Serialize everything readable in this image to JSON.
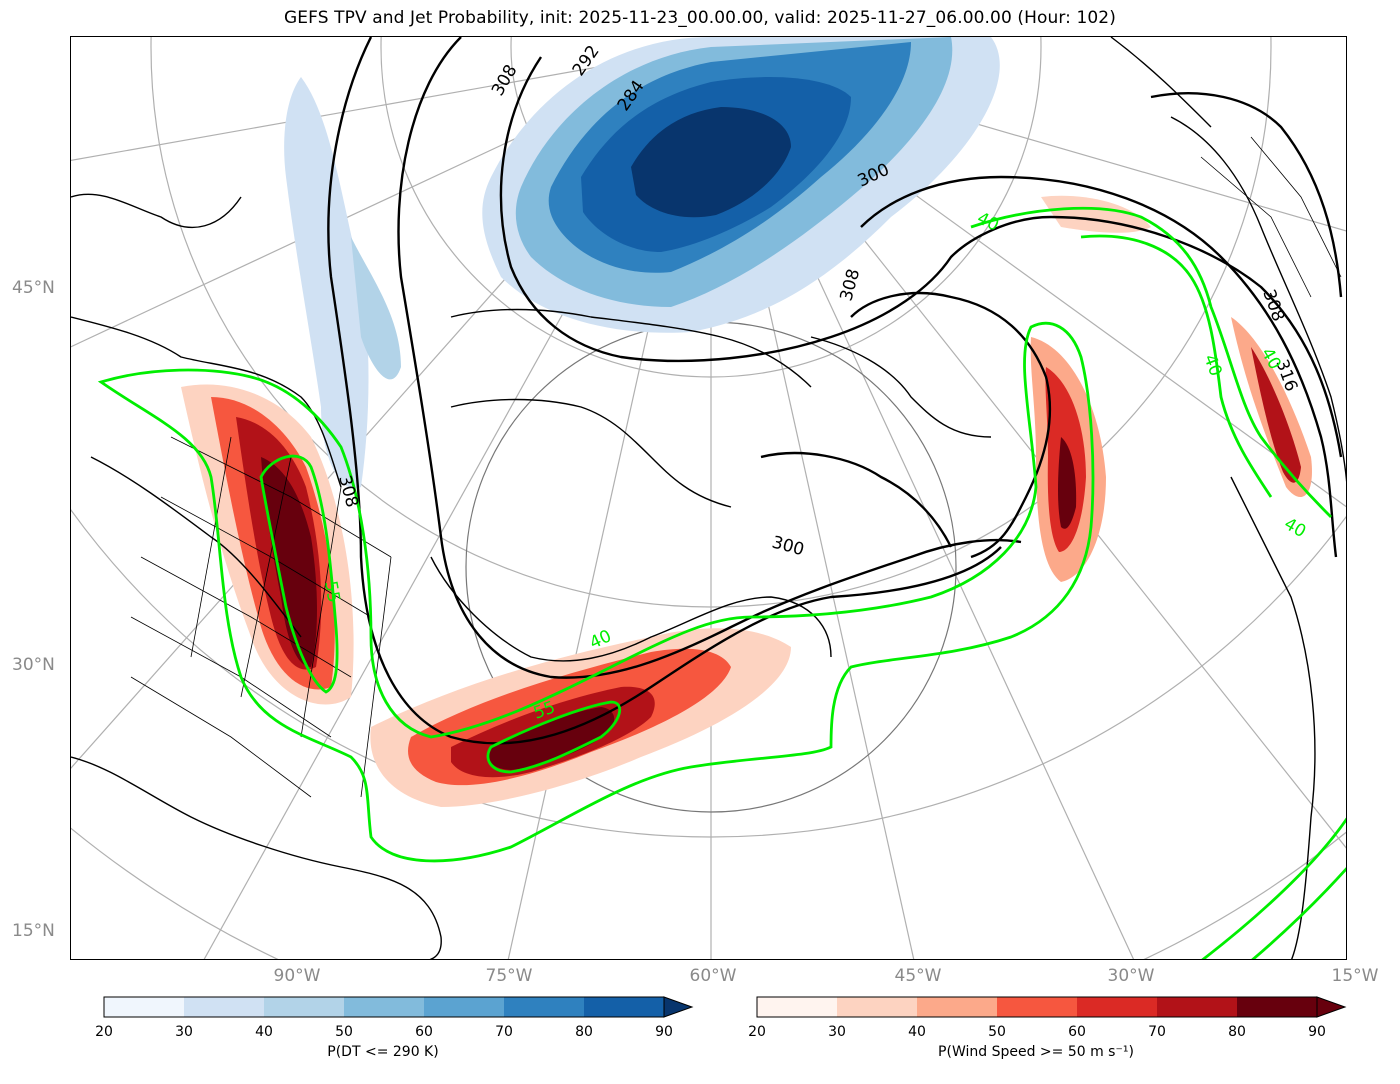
{
  "title": "GEFS TPV and Jet Probability, init: 2025-11-23_00.00.00, valid: 2025-11-27_06.00.00 (Hour: 102)",
  "map": {
    "lat_labels": [
      "45°N",
      "30°N",
      "15°N"
    ],
    "lon_labels": [
      "90°W",
      "75°W",
      "60°W",
      "45°W",
      "30°W",
      "15°W"
    ],
    "theta_contour_labels": [
      "308",
      "292",
      "284",
      "300",
      "308",
      "300",
      "308",
      "308",
      "316"
    ],
    "jet_contour_labels": [
      "40",
      "40",
      "40",
      "40",
      "40",
      "55",
      "55"
    ],
    "colors": {
      "tpv_cmap": "Blues",
      "jet_cmap": "Reds",
      "jet_contour": "#00ff00",
      "theta_contour": "#000000",
      "graticule": "#9a9a9a"
    }
  },
  "colorbars": [
    {
      "label": "P(DT <= 290 K)",
      "ticks": [
        "20",
        "30",
        "40",
        "50",
        "60",
        "70",
        "80",
        "90"
      ],
      "colors": [
        "#f0f6fd",
        "#d0e1f3",
        "#b2d3e8",
        "#82bbdc",
        "#5ba3d1",
        "#2f81bf",
        "#1460a8",
        "#08356d"
      ]
    },
    {
      "label": "P(Wind Speed >= 50 m s⁻¹)",
      "ticks": [
        "20",
        "30",
        "40",
        "50",
        "60",
        "70",
        "80",
        "90"
      ],
      "colors": [
        "#fff4ef",
        "#fdd3c1",
        "#fca98a",
        "#f6573f",
        "#db2a25",
        "#b21218",
        "#67000d"
      ]
    }
  ]
}
